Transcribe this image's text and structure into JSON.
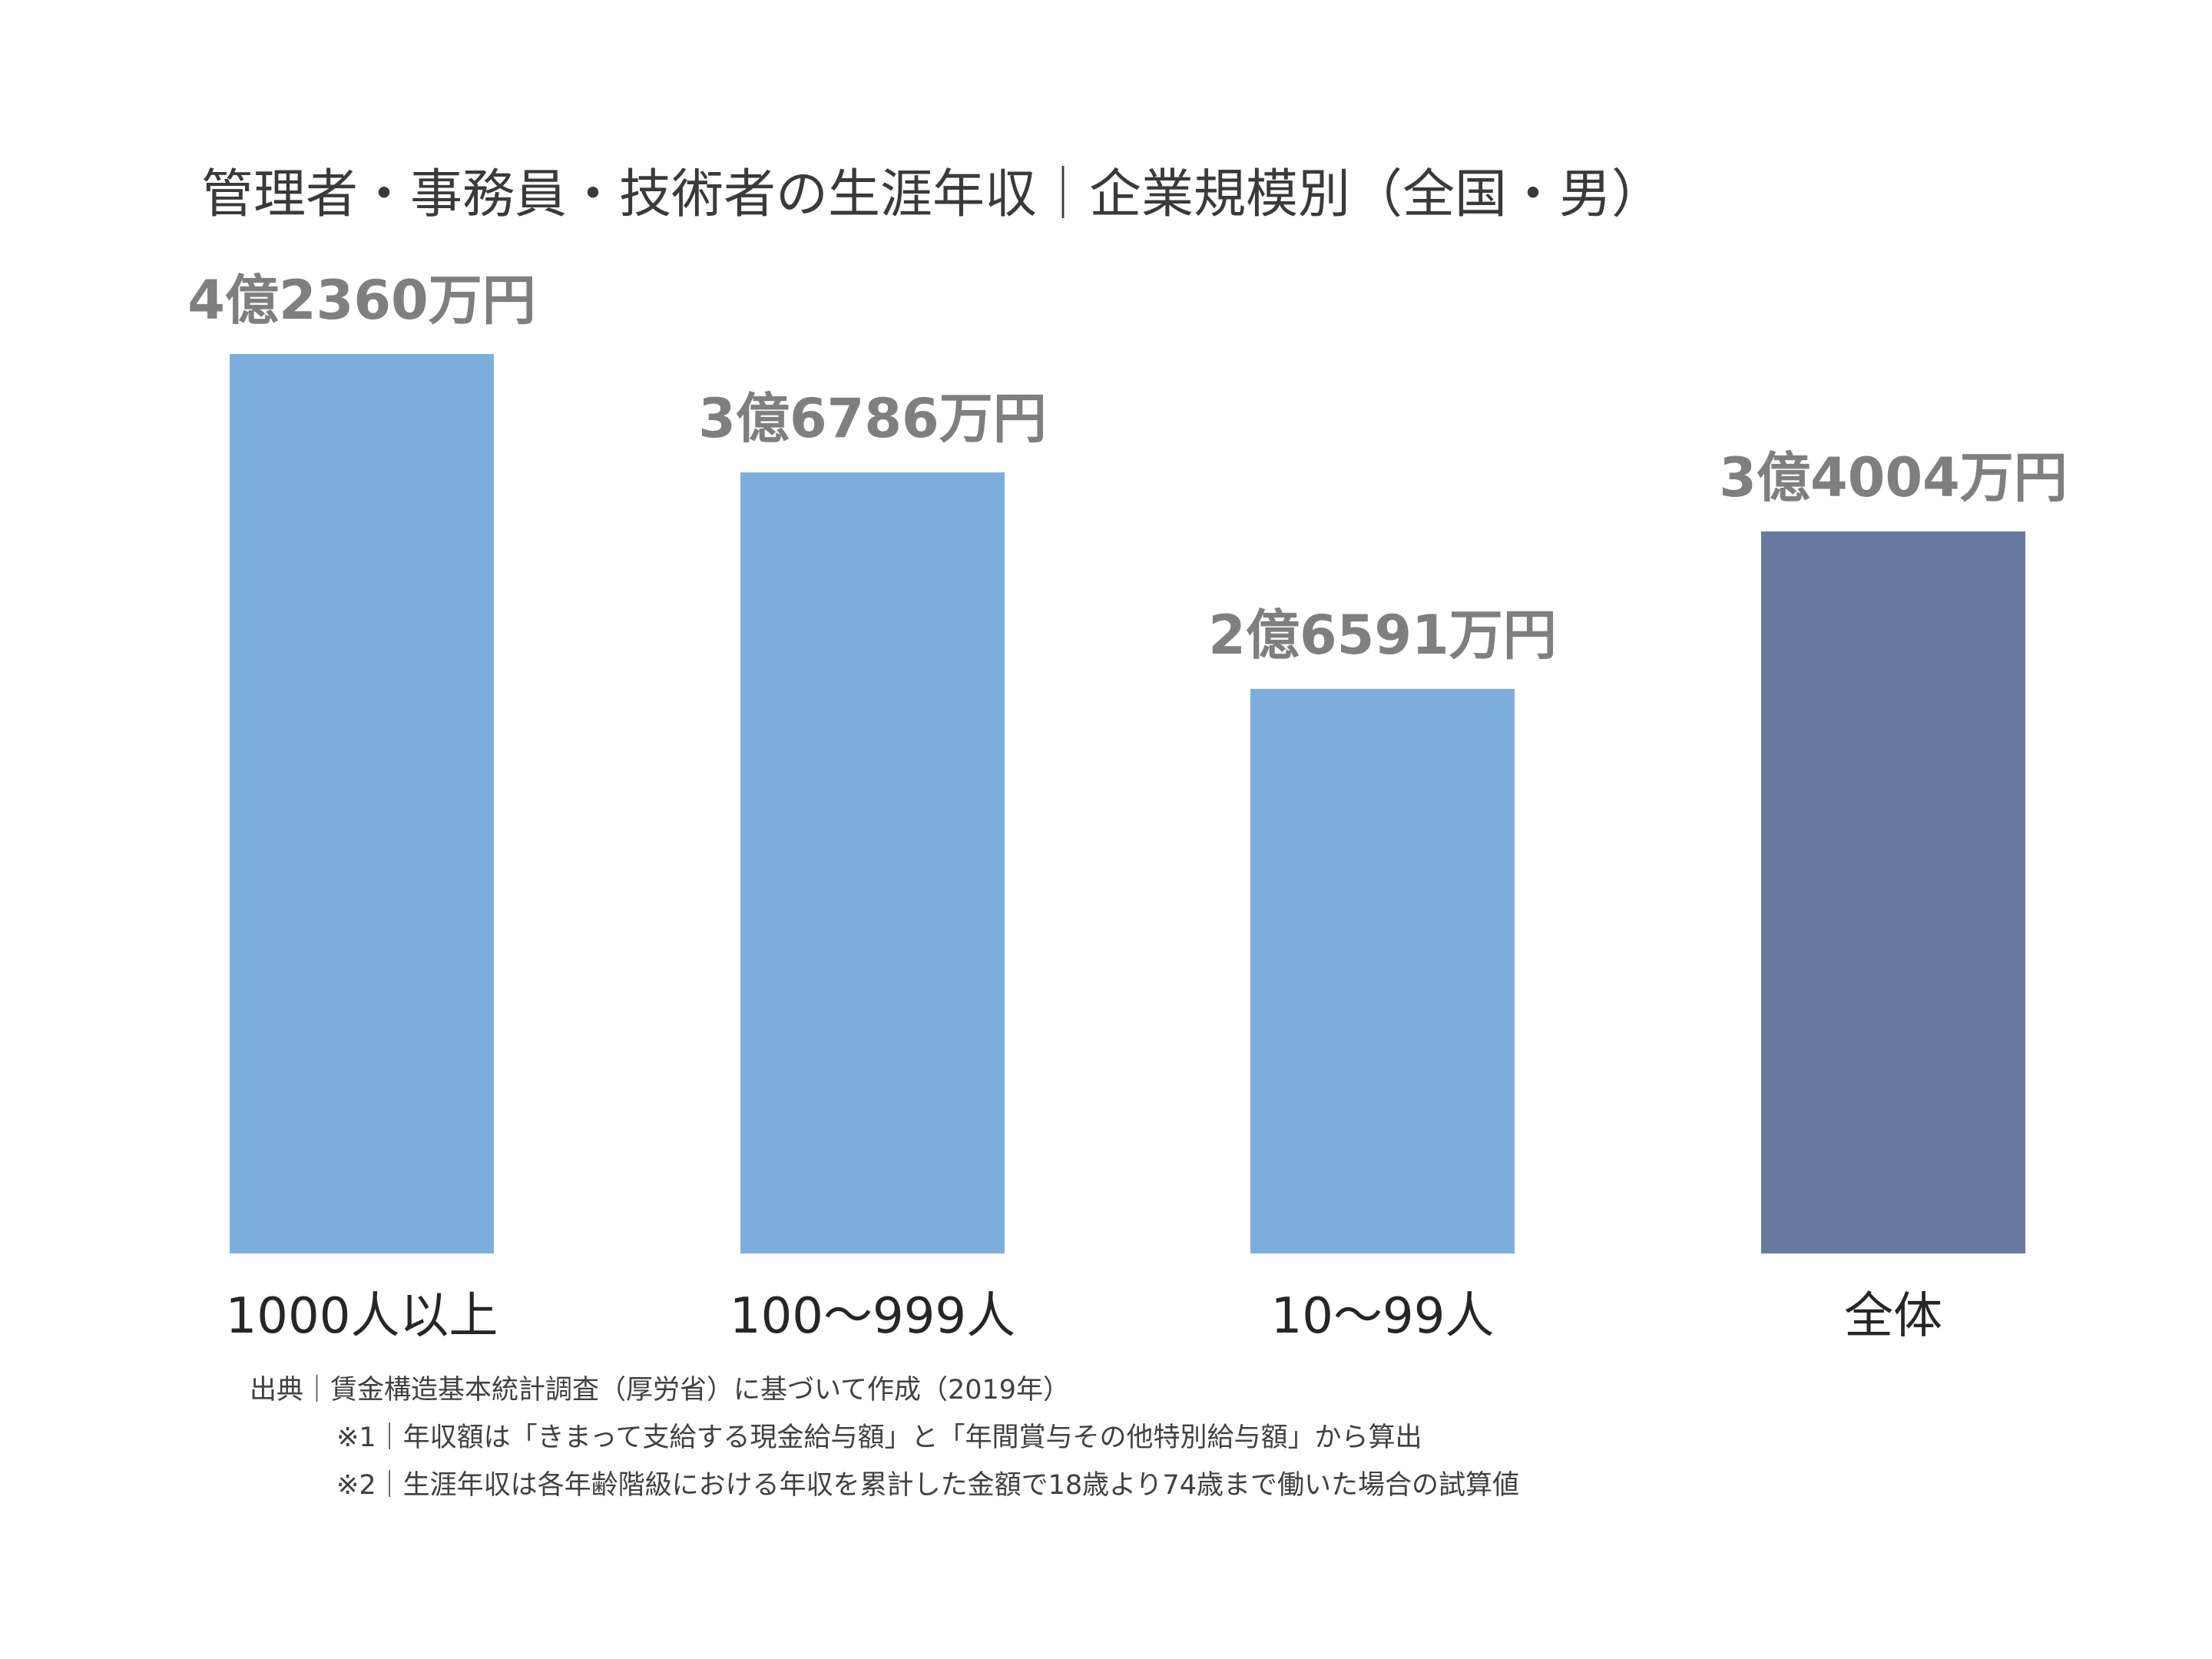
{
  "chart_data": {
    "type": "bar",
    "title": "管理者・事務員・技術者の生涯年収｜企業規模別（全国・男）",
    "categories": [
      "1000人以上",
      "100～999人",
      "10～99人",
      "全体"
    ],
    "values": [
      42360,
      36786,
      26591,
      34004
    ],
    "value_labels": [
      "4億2360万円",
      "3億6786万円",
      "2億6591万円",
      "3億4004万円"
    ],
    "value_unit": "万円",
    "ylim": [
      0,
      42360
    ],
    "grid": false,
    "legend": "none",
    "colors": [
      "#7eaedc",
      "#7eaedc",
      "#7eaedc",
      "#66799f"
    ]
  },
  "notes": {
    "source": "出典｜賃金構造基本統計調査（厚労省）に基づいて作成（2019年）",
    "note1": "※1｜年収額は「きまって支給する現金給与額」と「年間賞与その他特別給与額」から算出",
    "note2": "※2｜生涯年収は各年齢階級における年収を累計した金額で18歳より74歳まで働いた場合の試算値"
  }
}
